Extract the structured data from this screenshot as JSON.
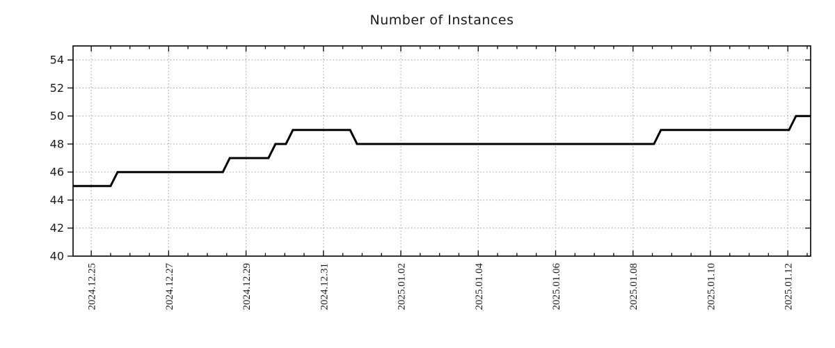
{
  "chart_data": {
    "type": "line",
    "subtype": "step-time-series",
    "title": "Number of Instances",
    "xlabel": "",
    "ylabel": "",
    "grid": true,
    "legend": "none",
    "colors": {
      "line": "#000000",
      "grid": "#ababab",
      "spine": "#000000",
      "title_text": "#1a1a1a",
      "tick_text": "#1a1a1a",
      "background": "#ffffff"
    },
    "y_axis": {
      "range": [
        40,
        55
      ],
      "ticks": [
        40,
        42,
        44,
        46,
        48,
        50,
        52,
        54
      ]
    },
    "x_axis": {
      "range_days": [
        0,
        19.06
      ],
      "start_datetime_approx": "2024-12-24 12:40",
      "end_datetime_approx": "2025-01-12 14:00",
      "minor_tick_step_days": 0.5,
      "ticks": [
        {
          "d": 0.47,
          "label": "2024.12.25"
        },
        {
          "d": 2.47,
          "label": "2024.12.27"
        },
        {
          "d": 4.47,
          "label": "2024.12.29"
        },
        {
          "d": 6.47,
          "label": "2024.12.31"
        },
        {
          "d": 8.47,
          "label": "2025.01.02"
        },
        {
          "d": 10.47,
          "label": "2025.01.04"
        },
        {
          "d": 12.47,
          "label": "2025.01.06"
        },
        {
          "d": 14.47,
          "label": "2025.01.08"
        },
        {
          "d": 16.47,
          "label": "2025.01.10"
        },
        {
          "d": 18.47,
          "label": "2025.01.12"
        }
      ]
    },
    "series": [
      {
        "name": "instances",
        "color": "#000000",
        "line_width": 3,
        "vertices_day_value": [
          [
            0.0,
            45
          ],
          [
            0.97,
            45
          ],
          [
            1.15,
            46
          ],
          [
            3.87,
            46
          ],
          [
            4.05,
            47
          ],
          [
            5.05,
            47
          ],
          [
            5.23,
            48
          ],
          [
            5.5,
            48
          ],
          [
            5.68,
            49
          ],
          [
            7.16,
            49
          ],
          [
            7.34,
            48
          ],
          [
            15.01,
            48
          ],
          [
            15.19,
            49
          ],
          [
            18.5,
            49
          ],
          [
            18.68,
            50
          ],
          [
            19.06,
            50
          ]
        ],
        "steps_summary": [
          {
            "value": 45,
            "from_approx": "2024-12-24 13:00"
          },
          {
            "value": 46,
            "from_approx": "2024-12-25 14:00"
          },
          {
            "value": 47,
            "from_approx": "2024-12-28 12:00"
          },
          {
            "value": 48,
            "from_approx": "2024-12-29 16:00"
          },
          {
            "value": 49,
            "from_approx": "2024-12-30 03:00"
          },
          {
            "value": 48,
            "from_approx": "2024-12-31 19:00"
          },
          {
            "value": 49,
            "from_approx": "2025-01-08 15:00"
          },
          {
            "value": 50,
            "from_approx": "2025-01-12 03:00"
          }
        ]
      }
    ]
  }
}
